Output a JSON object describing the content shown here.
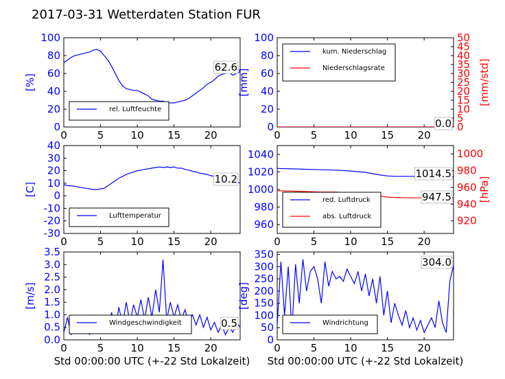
{
  "title": "2017-03-31 Wetterdaten Station FUR",
  "colors": {
    "blue": "#0000ff",
    "red": "#ff0000"
  },
  "chart_data": [
    {
      "id": "humidity",
      "type": "line",
      "ylabel": "[%]",
      "ylim": [
        0,
        100
      ],
      "yticks": [
        0,
        20,
        40,
        60,
        80,
        100
      ],
      "xlim": [
        0,
        24
      ],
      "xticks": [
        0,
        5,
        10,
        15,
        20
      ],
      "legend_position": "lower-left",
      "annotation": "62.6",
      "series": [
        {
          "name": "rel. Luftfeuchte",
          "axis": "left",
          "color": "#0000ff",
          "x": [
            0,
            0.5,
            1,
            1.5,
            2,
            2.5,
            3,
            3.5,
            4,
            4.5,
            5,
            5.5,
            6,
            6.5,
            7,
            7.5,
            8,
            8.5,
            9,
            9.5,
            10,
            10.5,
            11,
            11.5,
            12,
            12.5,
            13,
            13.5,
            14,
            14.5,
            15,
            15.5,
            16,
            16.5,
            17,
            17.5,
            18,
            18.5,
            19,
            19.5,
            20,
            20.5,
            21,
            21.5,
            22,
            22.5,
            23,
            23.5,
            24
          ],
          "y": [
            72,
            75,
            78,
            80,
            81,
            82,
            83,
            84,
            86,
            87,
            85,
            80,
            75,
            68,
            60,
            52,
            46,
            43,
            42,
            41,
            41,
            39,
            37,
            35,
            31,
            30,
            29,
            29,
            28,
            27,
            27,
            28,
            29,
            30,
            32,
            35,
            38,
            41,
            44,
            48,
            50,
            53,
            57,
            59,
            60,
            61,
            58,
            60,
            62
          ]
        }
      ]
    },
    {
      "id": "precip",
      "type": "line",
      "ylabel": "[mm]",
      "ylim": [
        0,
        100
      ],
      "yticks": [
        0,
        20,
        40,
        60,
        80,
        100
      ],
      "y2label": "[mm/std]",
      "y2lim": [
        0,
        50
      ],
      "y2ticks": [
        0,
        5,
        10,
        15,
        20,
        25,
        30,
        35,
        40,
        45,
        50
      ],
      "xlim": [
        0,
        24
      ],
      "xticks": [
        0,
        5,
        10,
        15,
        20
      ],
      "legend_position": "upper-left",
      "annotation": "0.0",
      "series": [
        {
          "name": "kum. Niederschlag",
          "axis": "left",
          "color": "#0000ff",
          "x": [
            0,
            24
          ],
          "y": [
            0,
            0
          ]
        },
        {
          "name": "Niederschlagsrate",
          "axis": "right",
          "color": "#ff0000",
          "x": [
            0,
            24
          ],
          "y": [
            0,
            0
          ]
        }
      ]
    },
    {
      "id": "temperature",
      "type": "line",
      "ylabel": "[C]",
      "ylim": [
        -30,
        40
      ],
      "yticks": [
        -30,
        -20,
        -10,
        0,
        10,
        20,
        30,
        40
      ],
      "xlim": [
        0,
        24
      ],
      "xticks": [
        0,
        5,
        10,
        15,
        20
      ],
      "legend_position": "lower-left",
      "annotation": "10.2",
      "series": [
        {
          "name": "Lufttemperatur",
          "axis": "left",
          "color": "#0000ff",
          "x": [
            0,
            0.5,
            1,
            1.5,
            2,
            2.5,
            3,
            3.5,
            4,
            4.5,
            5,
            5.5,
            6,
            6.5,
            7,
            7.5,
            8,
            8.5,
            9,
            9.5,
            10,
            10.5,
            11,
            11.5,
            12,
            12.5,
            13,
            13.5,
            14,
            14.5,
            15,
            15.5,
            16,
            16.5,
            17,
            17.5,
            18,
            18.5,
            19,
            19.5,
            20,
            20.5,
            21,
            21.5,
            22,
            22.5,
            23,
            23.5,
            24
          ],
          "y": [
            9,
            8,
            8,
            7.5,
            7,
            6.5,
            6,
            5.5,
            5,
            5,
            5.5,
            6,
            8,
            10,
            12,
            14,
            15.5,
            17,
            18,
            19,
            20,
            20.5,
            21,
            21.5,
            22,
            22.5,
            23,
            22.5,
            23,
            22.5,
            23,
            22,
            22,
            21,
            20.5,
            19.5,
            19,
            18,
            17.5,
            17,
            16,
            15.5,
            15,
            14,
            13.5,
            12.5,
            12,
            11,
            10.2
          ]
        }
      ]
    },
    {
      "id": "pressure",
      "type": "line",
      "ylabel": "",
      "ylim": [
        950,
        1050
      ],
      "yticks": [
        960,
        980,
        1000,
        1020,
        1040
      ],
      "y2label": "[hPa]",
      "y2lim": [
        905,
        1010
      ],
      "y2ticks": [
        920,
        940,
        960,
        980,
        1000
      ],
      "xlim": [
        0,
        24
      ],
      "xticks": [
        0,
        5,
        10,
        15,
        20
      ],
      "legend_position": "lower-left",
      "annotations": [
        "1014.5",
        "947.5"
      ],
      "series": [
        {
          "name": "red. Luftdruck",
          "axis": "left",
          "color": "#0000ff",
          "x": [
            0,
            2,
            4,
            6,
            8,
            10,
            12,
            13,
            14,
            15,
            16,
            18,
            20,
            22,
            24
          ],
          "y": [
            1024,
            1023.5,
            1023,
            1022.5,
            1022,
            1021,
            1019.5,
            1018,
            1016.5,
            1015.5,
            1015,
            1015,
            1015,
            1014.7,
            1014.5
          ]
        },
        {
          "name": "abs. Luftdruck",
          "axis": "right",
          "color": "#ff0000",
          "x": [
            0,
            2,
            4,
            6,
            8,
            10,
            12,
            13,
            14,
            15,
            16,
            18,
            20,
            22,
            24
          ],
          "y": [
            956,
            955.5,
            955,
            954.5,
            954.5,
            953.5,
            952,
            950.5,
            949.5,
            948.5,
            948,
            947.5,
            947.5,
            947.5,
            947.5
          ]
        }
      ]
    },
    {
      "id": "wind_speed",
      "type": "line",
      "ylabel": "[m/s]",
      "ylim": [
        0,
        3.5
      ],
      "yticks": [
        0.0,
        0.5,
        1.0,
        1.5,
        2.0,
        2.5,
        3.0,
        3.5
      ],
      "xlabel": "Std 00:00:00 UTC (+-22 Std Lokalzeit)",
      "xlim": [
        0,
        24
      ],
      "xticks": [
        0,
        5,
        10,
        15,
        20
      ],
      "legend_position": "lower-left",
      "annotation": "0.5",
      "series": [
        {
          "name": "Windgeschwindigkeit",
          "axis": "left",
          "color": "#0000ff",
          "x": [
            0,
            0.5,
            1,
            1.5,
            2,
            2.5,
            3,
            3.5,
            4,
            4.5,
            5,
            5.5,
            6,
            6.5,
            7,
            7.5,
            8,
            8.5,
            9,
            9.5,
            10,
            10.5,
            11,
            11.5,
            12,
            12.5,
            13,
            13.5,
            14,
            14.5,
            15,
            15.5,
            16,
            16.5,
            17,
            17.5,
            18,
            18.5,
            19,
            19.5,
            20,
            20.5,
            21,
            21.5,
            22,
            22.5,
            23,
            23.5,
            24
          ],
          "y": [
            0.3,
            0.9,
            0.2,
            0.8,
            0.3,
            0.6,
            0.9,
            0.2,
            1.0,
            0.5,
            0.4,
            0.8,
            0.3,
            1.1,
            0.4,
            1.3,
            0.6,
            1.5,
            0.7,
            1.4,
            0.9,
            1.6,
            0.8,
            1.7,
            0.9,
            2.0,
            1.1,
            3.2,
            0.8,
            1.5,
            0.9,
            1.4,
            0.8,
            1.2,
            0.7,
            1.0,
            0.6,
            1.0,
            0.5,
            0.9,
            0.4,
            0.7,
            0.3,
            0.6,
            0.2,
            0.5,
            0.3,
            0.7,
            0.5
          ]
        }
      ]
    },
    {
      "id": "wind_direction",
      "type": "line",
      "ylabel": "[deg]",
      "ylim": [
        0,
        360
      ],
      "yticks": [
        0,
        50,
        100,
        150,
        200,
        250,
        300,
        350
      ],
      "xlabel": "Std 00:00:00 UTC (+-22 Std Lokalzeit)",
      "xlim": [
        0,
        24
      ],
      "xticks": [
        0,
        5,
        10,
        15,
        20
      ],
      "legend_position": "lower-left",
      "annotation": "304.0",
      "series": [
        {
          "name": "Windrichtung",
          "axis": "left",
          "color": "#0000ff",
          "x": [
            0,
            0.5,
            1,
            1.5,
            2,
            2.5,
            3,
            3.5,
            4,
            4.5,
            5,
            5.5,
            6,
            6.5,
            7,
            7.5,
            8,
            8.5,
            9,
            9.5,
            10,
            10.5,
            11,
            11.5,
            12,
            12.5,
            13,
            13.5,
            14,
            14.5,
            15,
            15.5,
            16,
            16.5,
            17,
            17.5,
            18,
            18.5,
            19,
            19.5,
            20,
            20.5,
            21,
            21.5,
            22,
            22.5,
            23,
            23.5,
            24
          ],
          "y": [
            60,
            320,
            100,
            300,
            40,
            310,
            150,
            330,
            200,
            280,
            300,
            250,
            150,
            320,
            220,
            280,
            250,
            260,
            240,
            290,
            260,
            230,
            280,
            200,
            270,
            180,
            250,
            150,
            260,
            100,
            200,
            70,
            150,
            100,
            60,
            120,
            50,
            90,
            40,
            80,
            30,
            60,
            90,
            50,
            160,
            70,
            30,
            240,
            304
          ]
        }
      ]
    }
  ]
}
